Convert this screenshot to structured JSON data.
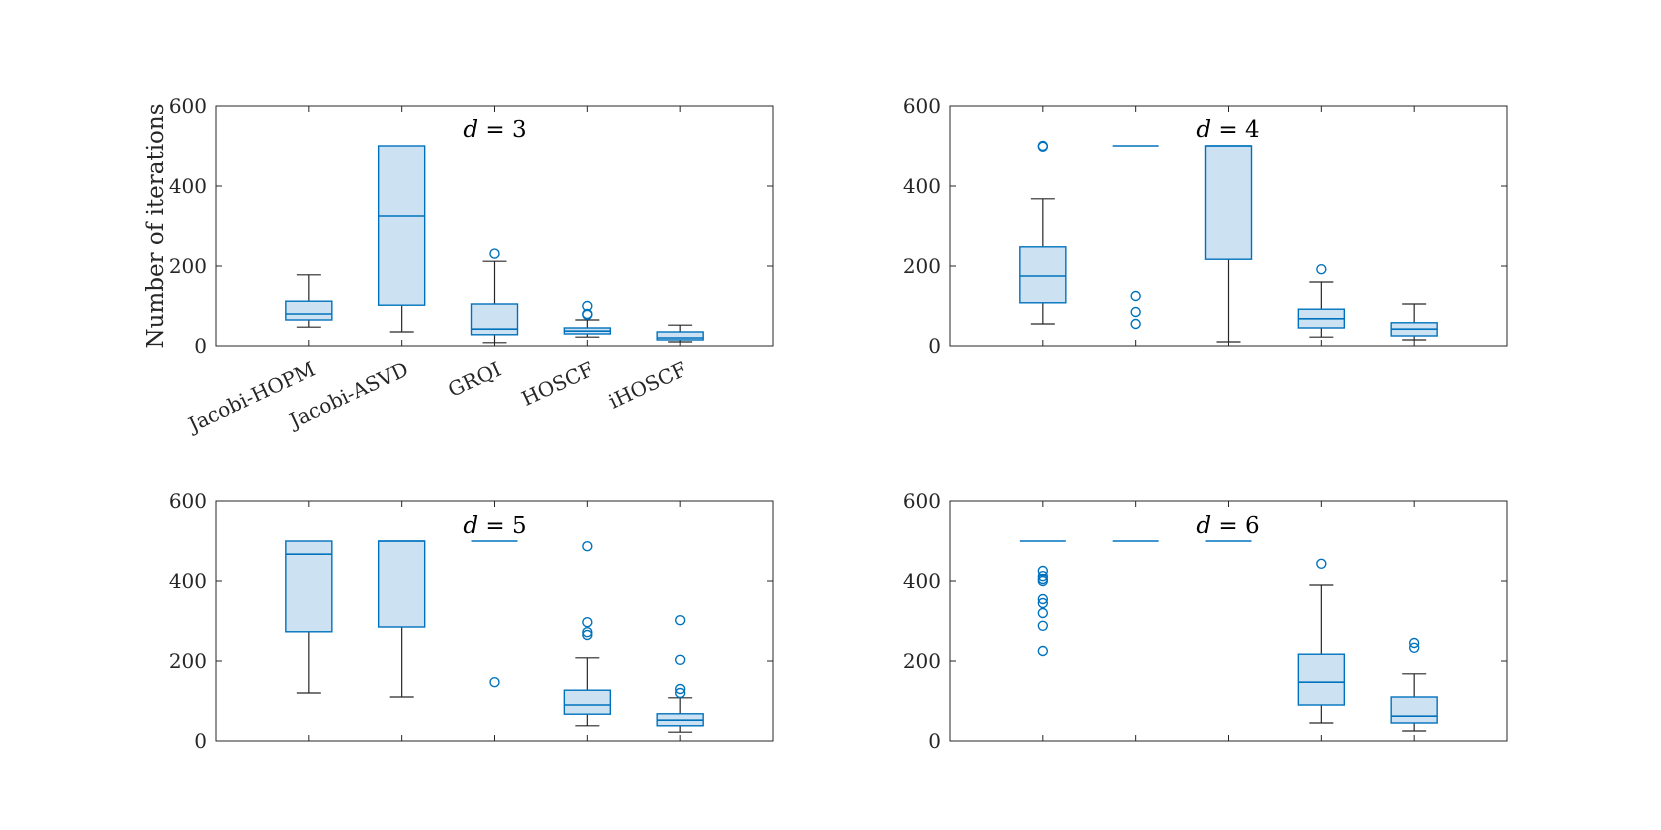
{
  "colors": {
    "box_edge": "#0072BD",
    "box_fill": "#CCE2F2",
    "whisker": "#262626",
    "axes": "#262626"
  },
  "categories": [
    "Jacobi-HOPM",
    "Jacobi-ASVD",
    "GRQI",
    "HOSCF",
    "iHOSCF"
  ],
  "ylabel": "Number of iterations",
  "chart_data": [
    {
      "type": "box",
      "title_var": "d",
      "title_eq": " = ",
      "title_val": "3",
      "ylim": [
        0,
        600
      ],
      "yticks": [
        "0",
        "200",
        "400",
        "600"
      ],
      "show_xticklabels": true,
      "boxes": [
        {
          "category": "Jacobi-HOPM",
          "whisker_low": 47,
          "q1": 65,
          "median": 80,
          "q3": 112,
          "whisker_high": 178,
          "outliers": []
        },
        {
          "category": "Jacobi-ASVD",
          "whisker_low": 35,
          "q1": 102,
          "median": 325,
          "q3": 500,
          "whisker_high": 500,
          "outliers": []
        },
        {
          "category": "GRQI",
          "whisker_low": 8,
          "q1": 28,
          "median": 42,
          "q3": 105,
          "whisker_high": 212,
          "outliers": [
            231
          ]
        },
        {
          "category": "HOSCF",
          "whisker_low": 22,
          "q1": 30,
          "median": 37,
          "q3": 45,
          "whisker_high": 65,
          "outliers": [
            78,
            80,
            100
          ]
        },
        {
          "category": "iHOSCF",
          "whisker_low": 10,
          "q1": 15,
          "median": 20,
          "q3": 35,
          "whisker_high": 52,
          "outliers": []
        }
      ]
    },
    {
      "type": "box",
      "title_var": "d",
      "title_eq": " = ",
      "title_val": "4",
      "ylim": [
        0,
        600
      ],
      "yticks": [
        "0",
        "200",
        "400",
        "600"
      ],
      "show_xticklabels": false,
      "boxes": [
        {
          "category": "Jacobi-HOPM",
          "whisker_low": 55,
          "q1": 108,
          "median": 175,
          "q3": 248,
          "whisker_high": 368,
          "outliers": [
            498,
            500
          ]
        },
        {
          "category": "Jacobi-ASVD",
          "whisker_low": 500,
          "q1": 500,
          "median": 500,
          "q3": 500,
          "whisker_high": 500,
          "outliers": [
            55,
            85,
            125
          ]
        },
        {
          "category": "GRQI",
          "whisker_low": 10,
          "q1": 217,
          "median": 500,
          "q3": 500,
          "whisker_high": 500,
          "outliers": []
        },
        {
          "category": "HOSCF",
          "whisker_low": 22,
          "q1": 45,
          "median": 68,
          "q3": 92,
          "whisker_high": 160,
          "outliers": [
            192
          ]
        },
        {
          "category": "iHOSCF",
          "whisker_low": 15,
          "q1": 25,
          "median": 42,
          "q3": 58,
          "whisker_high": 105,
          "outliers": []
        }
      ]
    },
    {
      "type": "box",
      "title_var": "d",
      "title_eq": " = ",
      "title_val": "5",
      "ylim": [
        0,
        600
      ],
      "yticks": [
        "0",
        "200",
        "400",
        "600"
      ],
      "show_xticklabels": false,
      "boxes": [
        {
          "category": "Jacobi-HOPM",
          "whisker_low": 120,
          "q1": 273,
          "median": 467,
          "q3": 500,
          "whisker_high": 500,
          "outliers": []
        },
        {
          "category": "Jacobi-ASVD",
          "whisker_low": 110,
          "q1": 285,
          "median": 500,
          "q3": 500,
          "whisker_high": 500,
          "outliers": []
        },
        {
          "category": "GRQI",
          "whisker_low": 500,
          "q1": 500,
          "median": 500,
          "q3": 500,
          "whisker_high": 500,
          "outliers": [
            147
          ]
        },
        {
          "category": "HOSCF",
          "whisker_low": 38,
          "q1": 67,
          "median": 90,
          "q3": 127,
          "whisker_high": 208,
          "outliers": [
            265,
            272,
            297,
            487
          ]
        },
        {
          "category": "iHOSCF",
          "whisker_low": 22,
          "q1": 38,
          "median": 52,
          "q3": 68,
          "whisker_high": 108,
          "outliers": [
            120,
            130,
            203,
            302
          ]
        }
      ]
    },
    {
      "type": "box",
      "title_var": "d",
      "title_eq": " = ",
      "title_val": "6",
      "ylim": [
        0,
        600
      ],
      "yticks": [
        "0",
        "200",
        "400",
        "600"
      ],
      "show_xticklabels": false,
      "boxes": [
        {
          "category": "Jacobi-HOPM",
          "whisker_low": 500,
          "q1": 500,
          "median": 500,
          "q3": 500,
          "whisker_high": 500,
          "outliers": [
            225,
            288,
            320,
            345,
            355,
            400,
            405,
            412,
            425
          ]
        },
        {
          "category": "Jacobi-ASVD",
          "whisker_low": 500,
          "q1": 500,
          "median": 500,
          "q3": 500,
          "whisker_high": 500,
          "outliers": []
        },
        {
          "category": "GRQI",
          "whisker_low": 500,
          "q1": 500,
          "median": 500,
          "q3": 500,
          "whisker_high": 500,
          "outliers": []
        },
        {
          "category": "HOSCF",
          "whisker_low": 45,
          "q1": 90,
          "median": 147,
          "q3": 217,
          "whisker_high": 390,
          "outliers": [
            443
          ]
        },
        {
          "category": "iHOSCF",
          "whisker_low": 25,
          "q1": 45,
          "median": 62,
          "q3": 110,
          "whisker_high": 168,
          "outliers": [
            233,
            245
          ]
        }
      ]
    }
  ]
}
